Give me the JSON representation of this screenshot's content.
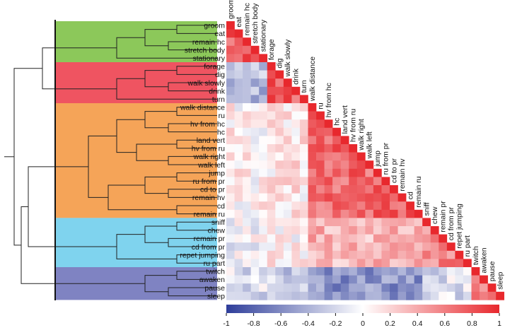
{
  "chart_data": {
    "type": "heatmap",
    "variant": "lower-triangular correlation matrix with hierarchical clustering dendrogram",
    "labels": [
      "groom",
      "eat",
      "remain hc",
      "stretch body",
      "stationary",
      "forage",
      "dig",
      "walk slowly",
      "drink",
      "turn",
      "walk distance",
      "ru",
      "hv from hc",
      "hc",
      "land vert",
      "hv from ru",
      "walk right",
      "walk left",
      "jump",
      "ru from pr",
      "cd to pr",
      "remain hv",
      "cd",
      "remain ru",
      "sniff",
      "chew",
      "remain pr",
      "cd from pr",
      "repet jumping",
      "ru part",
      "twitch",
      "awaken",
      "pause",
      "sleep"
    ],
    "clusters": [
      {
        "name": "cluster-1",
        "start": 0,
        "end": 4,
        "color": "#8cc85a"
      },
      {
        "name": "cluster-2",
        "start": 5,
        "end": 9,
        "color": "#ef5461"
      },
      {
        "name": "cluster-3",
        "start": 10,
        "end": 23,
        "color": "#f5a458"
      },
      {
        "name": "cluster-4",
        "start": 24,
        "end": 29,
        "color": "#7fd3ee"
      },
      {
        "name": "cluster-5",
        "start": 30,
        "end": 33,
        "color": "#7f83c2"
      }
    ],
    "colorbar": {
      "min": -1,
      "max": 1,
      "ticks": [
        -1,
        -0.8,
        -0.6,
        -0.4,
        -0.2,
        0,
        0.2,
        0.4,
        0.6,
        0.8,
        1
      ],
      "tick_labels": [
        "-1",
        "-0.8",
        "-0.6",
        "-0.4",
        "-0.2",
        "0",
        "0.2",
        "0.4",
        "0.6",
        "0.8",
        "1"
      ],
      "colors": [
        "#2e3d9a",
        "#ffffff",
        "#e8282d"
      ]
    },
    "cluster_mean_correlations": [
      [
        0.75,
        -0.35,
        0.05,
        -0.05,
        -0.15
      ],
      [
        -0.35,
        0.75,
        0.1,
        0.05,
        -0.25
      ],
      [
        0.05,
        0.1,
        0.7,
        0.35,
        -0.55
      ],
      [
        -0.05,
        0.05,
        0.35,
        0.55,
        -0.15
      ],
      [
        -0.15,
        -0.25,
        -0.55,
        -0.15,
        0.6
      ]
    ],
    "diagonal": 1
  }
}
